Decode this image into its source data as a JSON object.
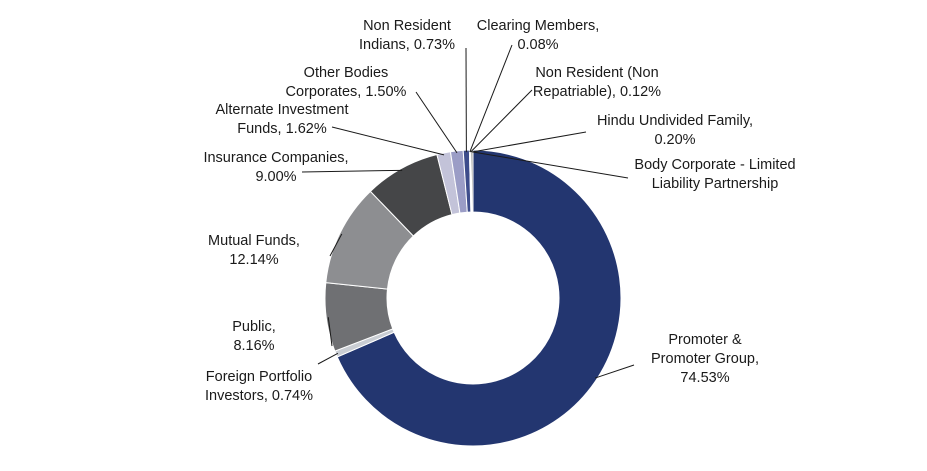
{
  "chart_data": {
    "type": "pie",
    "donut": true,
    "categories": [
      "Promoter & Promoter Group",
      "Foreign Portfolio Investors",
      "Public",
      "Mutual Funds",
      "Insurance Companies",
      "Alternate Investment Funds",
      "Other Bodies Corporates",
      "Non Resident Indians",
      "Clearing Members",
      "Non Resident (Non Repatriable)",
      "Hindu Undivided Family",
      "Body Corporate - Limited Liability Partnership"
    ],
    "values": [
      74.53,
      0.74,
      8.16,
      12.14,
      9.0,
      1.62,
      1.5,
      0.73,
      0.08,
      0.12,
      0.2,
      0.02
    ],
    "colors": [
      "#233670",
      "#c9cdd3",
      "#6f7073",
      "#8d8e91",
      "#454648",
      "#c3c3d9",
      "#9b9dc6",
      "#3d4c8b",
      "#7a7a7a",
      "#b0b0b0",
      "#2b2b2b",
      "#cfcfcf"
    ],
    "labels": [
      [
        "Promoter &",
        "Promoter Group,",
        "74.53%"
      ],
      [
        "Foreign Portfolio",
        "Investors, 0.74%"
      ],
      [
        "Public,",
        "8.16%"
      ],
      [
        "Mutual Funds,",
        "12.14%"
      ],
      [
        "Insurance Companies,",
        "9.00%"
      ],
      [
        "Alternate Investment",
        "Funds, 1.62%"
      ],
      [
        "Other Bodies",
        "Corporates, 1.50%"
      ],
      [
        "Non Resident",
        "Indians, 0.73%"
      ],
      [
        "Clearing Members,",
        "0.08%"
      ],
      [
        "Non Resident (Non",
        "Repatriable), 0.12%"
      ],
      [
        "Hindu Undivided Family,",
        "0.20%"
      ],
      [
        "Body Corporate - Limited",
        "Liability Partnership"
      ]
    ],
    "legend": "none"
  }
}
